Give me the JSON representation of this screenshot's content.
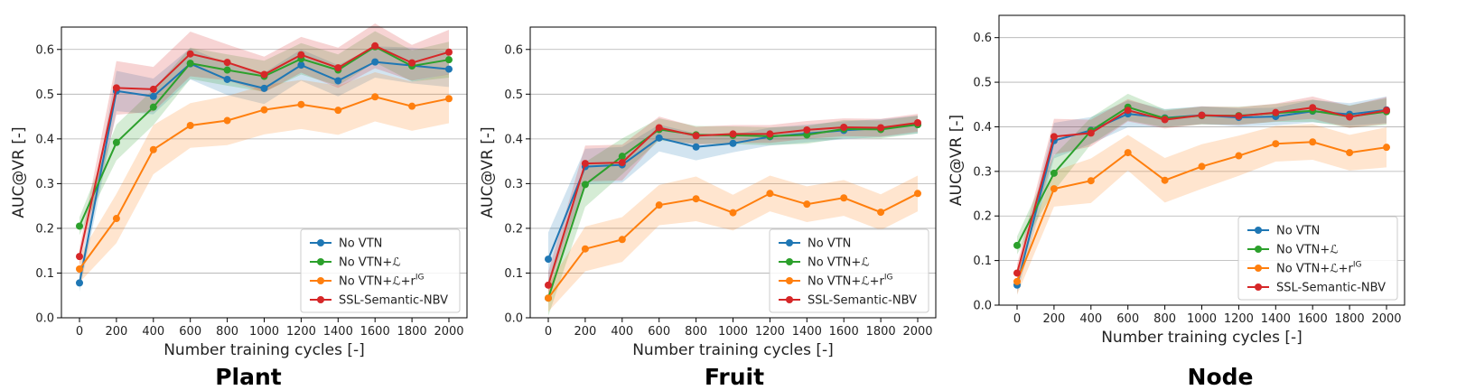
{
  "figure": {
    "panel_titles": [
      "Plant",
      "Fruit",
      "Node"
    ]
  },
  "chart_data": [
    {
      "type": "line",
      "title": "Plant",
      "xlabel": "Number training cycles [-]",
      "ylabel": "AUC@VR [-]",
      "ylim": [
        0,
        0.65
      ],
      "yticks": [
        0.0,
        0.1,
        0.2,
        0.3,
        0.4,
        0.5,
        0.6
      ],
      "x": [
        0,
        200,
        400,
        600,
        800,
        1000,
        1200,
        1400,
        1600,
        1800,
        2000
      ],
      "grid": "horizontal",
      "legend_position": "bottom-right",
      "series": [
        {
          "name": "No VTN",
          "color": "#1f77b4",
          "values": [
            0.078,
            0.507,
            0.495,
            0.568,
            0.533,
            0.513,
            0.565,
            0.53,
            0.572,
            0.564,
            0.556
          ],
          "band": [
            0.02,
            0.045,
            0.04,
            0.035,
            0.035,
            0.035,
            0.035,
            0.035,
            0.035,
            0.04,
            0.04
          ]
        },
        {
          "name": "No VTN+ℒ",
          "color": "#2ca02c",
          "values": [
            0.205,
            0.392,
            0.471,
            0.569,
            0.554,
            0.54,
            0.579,
            0.554,
            0.606,
            0.563,
            0.577
          ],
          "band": [
            0.02,
            0.04,
            0.04,
            0.035,
            0.035,
            0.035,
            0.035,
            0.035,
            0.035,
            0.035,
            0.04
          ]
        },
        {
          "name": "No VTN+ℒ+r^IG",
          "color": "#ff7f0e",
          "values": [
            0.109,
            0.222,
            0.376,
            0.43,
            0.441,
            0.465,
            0.477,
            0.464,
            0.494,
            0.473,
            0.49
          ],
          "band": [
            0.03,
            0.055,
            0.055,
            0.05,
            0.055,
            0.055,
            0.055,
            0.055,
            0.055,
            0.055,
            0.055
          ]
        },
        {
          "name": "SSL-Semantic-NBV",
          "color": "#d62728",
          "values": [
            0.137,
            0.514,
            0.511,
            0.59,
            0.571,
            0.544,
            0.588,
            0.559,
            0.608,
            0.57,
            0.594
          ],
          "band": [
            0.02,
            0.06,
            0.05,
            0.05,
            0.04,
            0.04,
            0.04,
            0.045,
            0.05,
            0.04,
            0.05
          ]
        }
      ]
    },
    {
      "type": "line",
      "title": "Fruit",
      "xlabel": "Number training cycles [-]",
      "ylabel": "AUC@VR [-]",
      "ylim": [
        0,
        0.65
      ],
      "yticks": [
        0.0,
        0.1,
        0.2,
        0.3,
        0.4,
        0.5,
        0.6
      ],
      "x": [
        0,
        200,
        400,
        600,
        800,
        1000,
        1200,
        1400,
        1600,
        1800,
        2000
      ],
      "grid": "horizontal",
      "legend_position": "bottom-right",
      "series": [
        {
          "name": "No VTN",
          "color": "#1f77b4",
          "values": [
            0.131,
            0.338,
            0.342,
            0.402,
            0.382,
            0.39,
            0.405,
            0.412,
            0.419,
            0.424,
            0.432
          ],
          "band": [
            0.06,
            0.04,
            0.04,
            0.03,
            0.03,
            0.02,
            0.02,
            0.02,
            0.02,
            0.02,
            0.02
          ]
        },
        {
          "name": "No VTN+ℒ",
          "color": "#2ca02c",
          "values": [
            0.044,
            0.298,
            0.361,
            0.421,
            0.409,
            0.408,
            0.406,
            0.409,
            0.422,
            0.421,
            0.432
          ],
          "band": [
            0.04,
            0.05,
            0.04,
            0.025,
            0.02,
            0.02,
            0.02,
            0.02,
            0.02,
            0.02,
            0.02
          ]
        },
        {
          "name": "No VTN+ℒ+r^IG",
          "color": "#ff7f0e",
          "values": [
            0.044,
            0.154,
            0.175,
            0.252,
            0.266,
            0.235,
            0.278,
            0.254,
            0.268,
            0.236,
            0.278
          ],
          "band": [
            0.03,
            0.05,
            0.05,
            0.045,
            0.05,
            0.04,
            0.04,
            0.04,
            0.04,
            0.04,
            0.04
          ]
        },
        {
          "name": "SSL-Semantic-NBV",
          "color": "#d62728",
          "values": [
            0.073,
            0.345,
            0.347,
            0.425,
            0.407,
            0.411,
            0.411,
            0.42,
            0.426,
            0.425,
            0.436
          ],
          "band": [
            0.03,
            0.04,
            0.04,
            0.025,
            0.02,
            0.02,
            0.02,
            0.02,
            0.02,
            0.02,
            0.02
          ]
        }
      ]
    },
    {
      "type": "line",
      "title": "Node",
      "xlabel": "Number training cycles [-]",
      "ylabel": "AUC@VR [-]",
      "ylim": [
        0,
        0.65
      ],
      "yticks": [
        0.0,
        0.1,
        0.2,
        0.3,
        0.4,
        0.5,
        0.6
      ],
      "x": [
        0,
        200,
        400,
        600,
        800,
        1000,
        1200,
        1400,
        1600,
        1800,
        2000
      ],
      "grid": "horizontal",
      "legend_position": "bottom-right",
      "series": [
        {
          "name": "No VTN",
          "color": "#1f77b4",
          "values": [
            0.045,
            0.369,
            0.392,
            0.429,
            0.42,
            0.426,
            0.421,
            0.423,
            0.435,
            0.428,
            0.438
          ],
          "band": [
            0.02,
            0.04,
            0.03,
            0.03,
            0.02,
            0.02,
            0.02,
            0.02,
            0.025,
            0.025,
            0.03
          ]
        },
        {
          "name": "No VTN+ℒ",
          "color": "#2ca02c",
          "values": [
            0.134,
            0.296,
            0.391,
            0.444,
            0.419,
            0.425,
            0.425,
            0.431,
            0.436,
            0.423,
            0.434
          ],
          "band": [
            0.02,
            0.04,
            0.03,
            0.03,
            0.02,
            0.02,
            0.02,
            0.02,
            0.025,
            0.025,
            0.03
          ]
        },
        {
          "name": "No VTN+ℒ+r^IG",
          "color": "#ff7f0e",
          "values": [
            0.053,
            0.261,
            0.279,
            0.342,
            0.28,
            0.311,
            0.335,
            0.362,
            0.366,
            0.342,
            0.354
          ],
          "band": [
            0.03,
            0.04,
            0.05,
            0.04,
            0.05,
            0.05,
            0.045,
            0.04,
            0.04,
            0.04,
            0.045
          ]
        },
        {
          "name": "SSL-Semantic-NBV",
          "color": "#d62728",
          "values": [
            0.072,
            0.378,
            0.386,
            0.437,
            0.416,
            0.426,
            0.424,
            0.432,
            0.443,
            0.422,
            0.437
          ],
          "band": [
            0.02,
            0.04,
            0.03,
            0.025,
            0.02,
            0.02,
            0.02,
            0.02,
            0.025,
            0.025,
            0.03
          ]
        }
      ]
    }
  ]
}
